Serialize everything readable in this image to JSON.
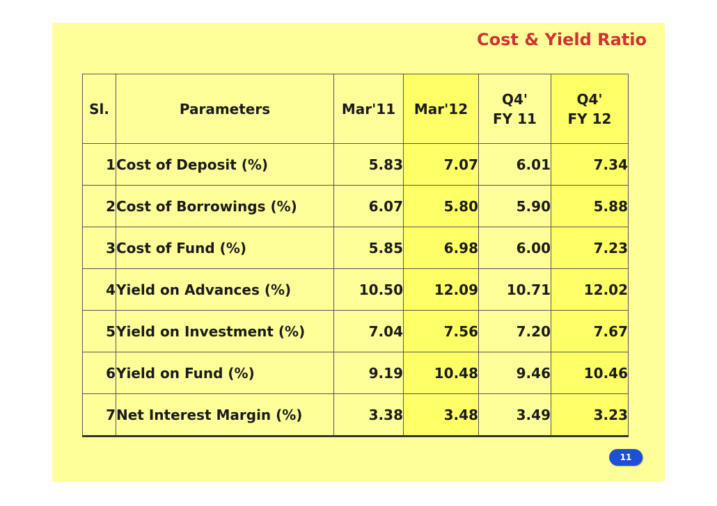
{
  "title": "Cost & Yield Ratio",
  "table": {
    "headers": {
      "sl": "Sl.",
      "parameters": "Parameters",
      "mar11": "Mar'11",
      "mar12": "Mar'12",
      "q4fy11_line1": "Q4'",
      "q4fy11_line2": "FY 11",
      "q4fy12_line1": "Q4'",
      "q4fy12_line2": "FY 12"
    },
    "rows": [
      {
        "sl": "1",
        "parameter": "Cost of Deposit (%)",
        "mar11": "5.83",
        "mar12": "7.07",
        "q4fy11": "6.01",
        "q4fy12": "7.34"
      },
      {
        "sl": "2",
        "parameter": "Cost of Borrowings (%)",
        "mar11": "6.07",
        "mar12": "5.80",
        "q4fy11": "5.90",
        "q4fy12": "5.88"
      },
      {
        "sl": "3",
        "parameter": "Cost of Fund (%)",
        "mar11": "5.85",
        "mar12": "6.98",
        "q4fy11": "6.00",
        "q4fy12": "7.23"
      },
      {
        "sl": "4",
        "parameter": "Yield on Advances (%)",
        "mar11": "10.50",
        "mar12": "12.09",
        "q4fy11": "10.71",
        "q4fy12": "12.02"
      },
      {
        "sl": "5",
        "parameter": "Yield on Investment (%)",
        "mar11": "7.04",
        "mar12": "7.56",
        "q4fy11": "7.20",
        "q4fy12": "7.67"
      },
      {
        "sl": "6",
        "parameter": "Yield on Fund (%)",
        "mar11": "9.19",
        "mar12": "10.48",
        "q4fy11": "9.46",
        "q4fy12": "10.46"
      },
      {
        "sl": "7",
        "parameter": "Net Interest Margin (%)",
        "mar11": "3.38",
        "mar12": "3.48",
        "q4fy11": "3.49",
        "q4fy12": "3.23"
      }
    ]
  },
  "page_number": "11",
  "colors": {
    "slide_background": "#ffff99",
    "highlight_column": "#ffff66",
    "title_color": "#cc3333",
    "badge_color": "#1e4fd6"
  }
}
